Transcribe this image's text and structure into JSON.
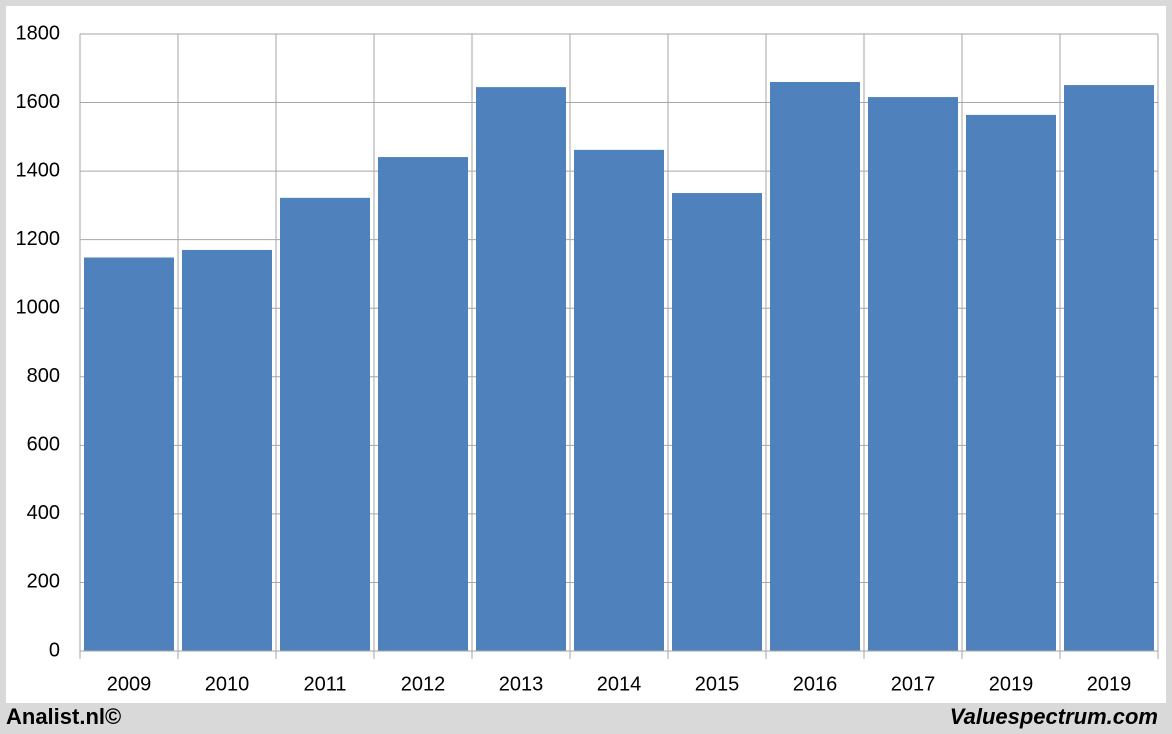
{
  "chart_data": {
    "type": "bar",
    "categories": [
      "2009",
      "2010",
      "2011",
      "2012",
      "2013",
      "2014",
      "2015",
      "2016",
      "2017",
      "2019",
      "2019"
    ],
    "values": [
      1148,
      1170,
      1322,
      1441,
      1645,
      1462,
      1336,
      1660,
      1616,
      1564,
      1651
    ],
    "color": "#4f81bd",
    "ylim": [
      0,
      1800
    ],
    "yticks": [
      0,
      200,
      400,
      600,
      800,
      1000,
      1200,
      1400,
      1600,
      1800
    ],
    "grid": true
  },
  "footer": {
    "left": "Analist.nl©",
    "right": "Valuespectrum.com"
  }
}
